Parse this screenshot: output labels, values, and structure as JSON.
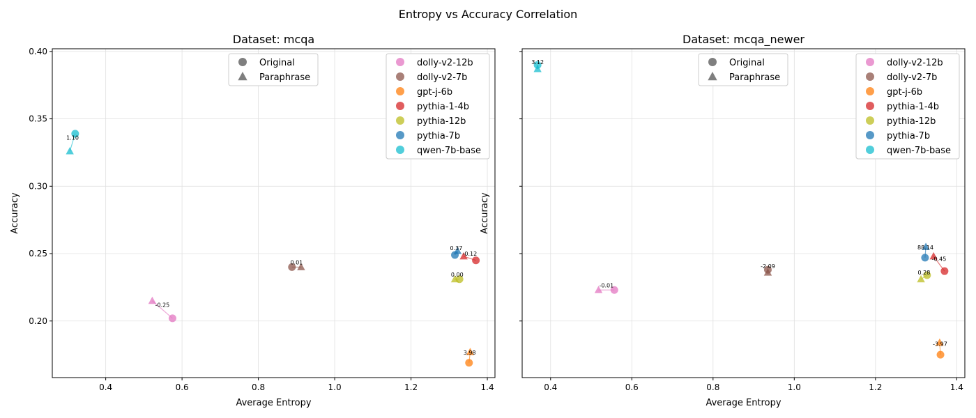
{
  "chart_data": {
    "suptitle": "Entropy vs Accuracy Correlation",
    "type": "scatter",
    "marker_legend": [
      {
        "label": "Original",
        "marker": "circle"
      },
      {
        "label": "Paraphrase",
        "marker": "triangle"
      }
    ],
    "model_legend": [
      {
        "label": "dolly-v2-12b",
        "color": "#e377c2"
      },
      {
        "label": "dolly-v2-7b",
        "color": "#8c564b"
      },
      {
        "label": "gpt-j-6b",
        "color": "#ff7f0e"
      },
      {
        "label": "pythia-1-4b",
        "color": "#d62728"
      },
      {
        "label": "pythia-12b",
        "color": "#bcbd22"
      },
      {
        "label": "pythia-7b",
        "color": "#1f77b4"
      },
      {
        "label": "qwen-7b-base",
        "color": "#17becf"
      }
    ],
    "panels": [
      {
        "title": "Dataset: mcqa",
        "xlabel": "Average Entropy",
        "ylabel": "Accuracy",
        "xlim": [
          0.26,
          1.42
        ],
        "ylim": [
          0.158,
          0.402
        ],
        "xticks": [
          "0.4",
          "0.6",
          "0.8",
          "1.0",
          "1.2",
          "1.4"
        ],
        "xtick_values": [
          0.4,
          0.6,
          0.8,
          1.0,
          1.2,
          1.4
        ],
        "yticks": [
          "0.20",
          "0.25",
          "0.30",
          "0.35",
          "0.40"
        ],
        "ytick_values": [
          0.2,
          0.25,
          0.3,
          0.35,
          0.4
        ],
        "show_ytick_labels": true,
        "points": [
          {
            "model": "dolly-v2-12b",
            "original": [
              0.575,
              0.202
            ],
            "paraphrase": [
              0.522,
              0.215
            ],
            "label": "-0.25"
          },
          {
            "model": "dolly-v2-7b",
            "original": [
              0.888,
              0.24
            ],
            "paraphrase": [
              0.912,
              0.24
            ],
            "label": "0.01"
          },
          {
            "model": "gpt-j-6b",
            "original": [
              1.352,
              0.169
            ],
            "paraphrase": [
              1.355,
              0.177
            ],
            "label": "3.98"
          },
          {
            "model": "pythia-1-4b",
            "original": [
              1.37,
              0.245
            ],
            "paraphrase": [
              1.338,
              0.248
            ],
            "label": "-0.12"
          },
          {
            "model": "pythia-12b",
            "original": [
              1.327,
              0.231
            ],
            "paraphrase": [
              1.315,
              0.231
            ],
            "label": "0.00"
          },
          {
            "model": "pythia-7b",
            "original": [
              1.315,
              0.249
            ],
            "paraphrase": [
              1.322,
              0.252
            ],
            "label": "0.37"
          },
          {
            "model": "qwen-7b-base",
            "original": [
              0.32,
              0.339
            ],
            "paraphrase": [
              0.306,
              0.326
            ],
            "label": "1.10"
          }
        ]
      },
      {
        "title": "Dataset: mcqa_newer",
        "xlabel": "Average Entropy",
        "ylabel": "Accuracy",
        "xlim": [
          0.33,
          1.42
        ],
        "ylim": [
          0.158,
          0.402
        ],
        "xticks": [
          "0.4",
          "0.6",
          "0.8",
          "1.0",
          "1.2",
          "1.4"
        ],
        "xtick_values": [
          0.4,
          0.6,
          0.8,
          1.0,
          1.2,
          1.4
        ],
        "yticks": [
          "",
          "",
          "",
          "",
          ""
        ],
        "ytick_values": [
          0.2,
          0.25,
          0.3,
          0.35,
          0.4
        ],
        "show_ytick_labels": false,
        "points": [
          {
            "model": "dolly-v2-12b",
            "original": [
              0.557,
              0.223
            ],
            "paraphrase": [
              0.518,
              0.223
            ],
            "label": "-0.01"
          },
          {
            "model": "dolly-v2-7b",
            "original": [
              0.935,
              0.238
            ],
            "paraphrase": [
              0.935,
              0.236
            ],
            "label": "-2.09"
          },
          {
            "model": "gpt-j-6b",
            "original": [
              1.36,
              0.175
            ],
            "paraphrase": [
              1.358,
              0.184
            ],
            "label": "-3.97"
          },
          {
            "model": "pythia-1-4b",
            "original": [
              1.37,
              0.237
            ],
            "paraphrase": [
              1.343,
              0.248
            ],
            "label": "-0.45"
          },
          {
            "model": "pythia-12b",
            "original": [
              1.327,
              0.234
            ],
            "paraphrase": [
              1.312,
              0.231
            ],
            "label": "0.28"
          },
          {
            "model": "pythia-7b",
            "original": [
              1.322,
              0.247
            ],
            "paraphrase": [
              1.324,
              0.255
            ],
            "label": "88.14"
          },
          {
            "model": "qwen-7b-base",
            "original": [
              0.368,
              0.39
            ],
            "paraphrase": [
              0.368,
              0.387
            ],
            "label": "3.12"
          }
        ]
      }
    ]
  }
}
